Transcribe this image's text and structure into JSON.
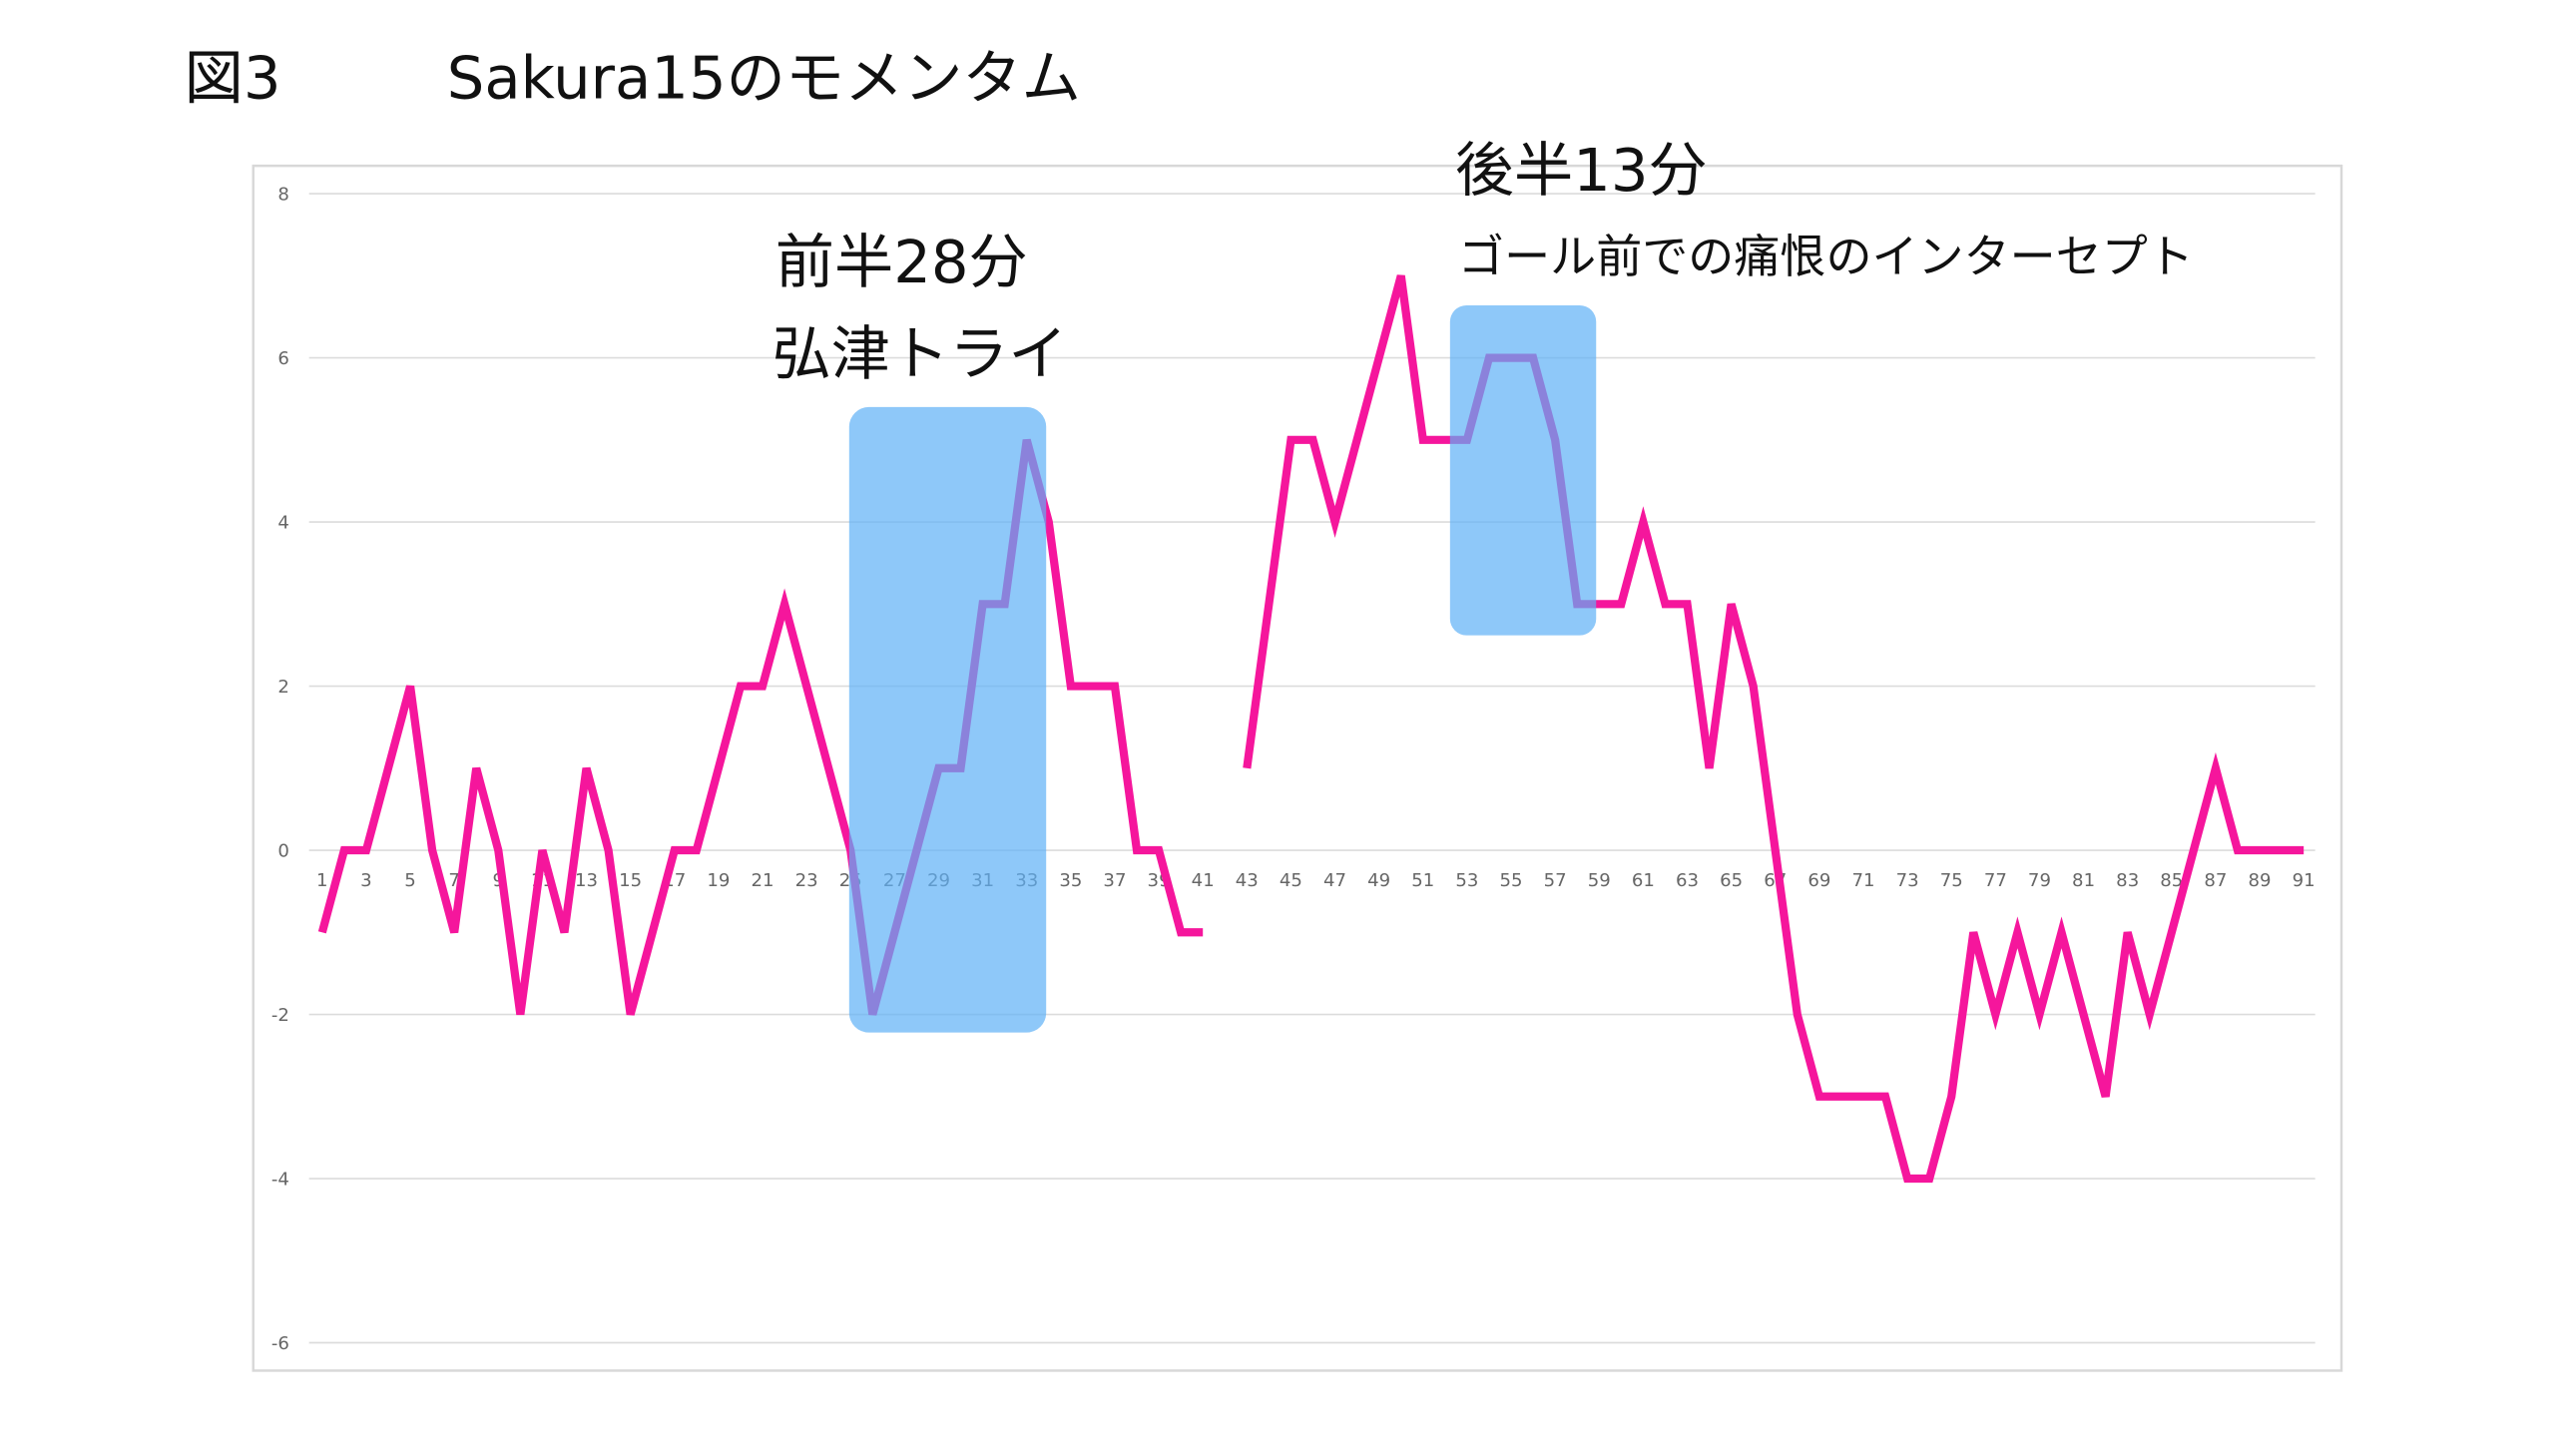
{
  "chart_data": {
    "type": "line",
    "title_label": "図3",
    "title": "Sakura15のモメンタム",
    "annotations": [
      "前半28分",
      "弘津トライ",
      "後半13分",
      "ゴール前での痛恨のインターセプト"
    ],
    "categories": [
      1,
      null,
      3,
      null,
      5,
      null,
      7,
      null,
      9,
      null,
      11,
      null,
      13,
      null,
      15,
      null,
      17,
      null,
      19,
      null,
      21,
      null,
      23,
      null,
      25,
      null,
      27,
      null,
      29,
      null,
      31,
      null,
      33,
      null,
      35,
      null,
      37,
      null,
      39,
      null,
      41,
      null,
      43,
      null,
      45,
      null,
      47,
      null,
      49,
      null,
      51,
      null,
      53,
      null,
      55,
      null,
      57,
      null,
      59,
      null,
      61,
      null,
      63,
      null,
      65,
      null,
      67,
      null,
      69,
      null,
      71,
      null,
      73,
      null,
      75,
      null,
      77,
      null,
      79,
      null,
      81,
      null,
      83,
      null,
      85,
      null,
      87,
      null,
      89,
      null,
      91
    ],
    "series": [
      {
        "color": "#f5169c",
        "values": [
          -1,
          0,
          0,
          1,
          2,
          0,
          -1,
          1,
          0,
          -2,
          0,
          -1,
          1,
          0,
          -2,
          -1,
          0,
          0,
          1,
          2,
          2,
          3,
          2,
          1,
          0,
          -2,
          -1,
          0,
          1,
          1,
          3,
          3,
          5,
          4,
          2,
          2,
          2,
          0,
          0,
          -1,
          -1,
          null,
          1,
          3,
          5,
          5,
          4,
          5,
          6,
          7,
          5,
          5,
          5,
          6,
          6,
          6,
          5,
          3,
          3,
          3,
          4,
          3,
          3,
          1,
          3,
          2,
          0,
          -2,
          -3,
          -3,
          -3,
          -3,
          -4,
          -4,
          -3,
          -1,
          -2,
          -1,
          -2,
          -1,
          -2,
          -3,
          -1,
          -2,
          -1,
          0,
          1,
          0,
          0,
          0,
          0
        ]
      }
    ],
    "ylim": [
      -6,
      8
    ],
    "yticks": [
      -6,
      -4,
      -2,
      0,
      2,
      4,
      6,
      8
    ],
    "grid": true
  }
}
